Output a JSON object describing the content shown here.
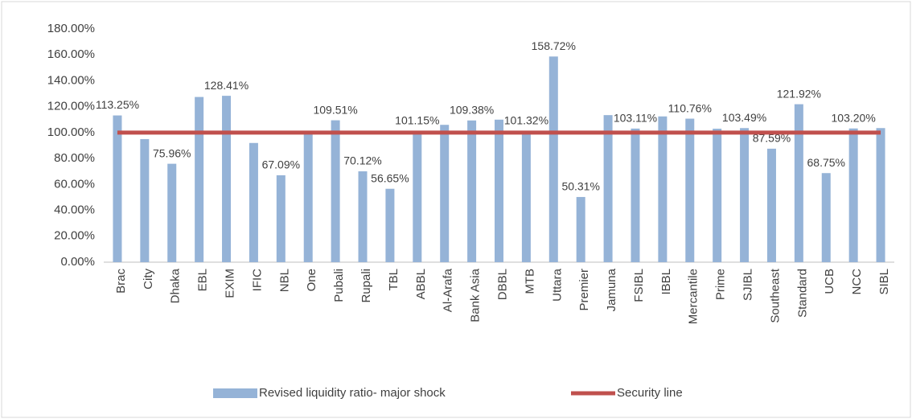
{
  "chart_data": {
    "type": "bar",
    "categories": [
      "Brac",
      "City",
      "Dhaka",
      "EBL",
      "EXIM",
      "IFIC",
      "NBL",
      "One",
      "Pubali",
      "Rupali",
      "TBL",
      "ABBL",
      "Al-Arafa",
      "Bank Asia",
      "DBBL",
      "MTB",
      "Uttara",
      "Premier",
      "Jamuna",
      "FSIBL",
      "IBBL",
      "Mercantile",
      "Prime",
      "SJIBL",
      "Southeast",
      "Standard",
      "UCB",
      "NCC",
      "SIBL"
    ],
    "series": [
      {
        "name": "Revised liquidity ratio- major shock",
        "type": "bar",
        "color": "#95b3d7",
        "values": [
          113.25,
          95,
          75.96,
          127.5,
          128.41,
          92,
          67.09,
          101,
          109.51,
          70.12,
          56.65,
          101.15,
          106,
          109.38,
          110,
          101.32,
          158.72,
          50.31,
          113.5,
          103.11,
          112.5,
          110.76,
          103,
          103.49,
          87.59,
          121.92,
          68.75,
          103.2,
          103.5
        ],
        "value_labels": [
          "113.25%",
          null,
          "75.96%",
          null,
          "128.41%",
          null,
          "67.09%",
          null,
          "109.51%",
          "70.12%",
          "56.65%",
          "101.15%",
          null,
          "109.38%",
          null,
          "101.32%",
          "158.72%",
          "50.31%",
          null,
          "103.11%",
          null,
          "110.76%",
          null,
          "103.49%",
          "87.59%",
          "121.92%",
          "68.75%",
          "103.20%",
          null
        ]
      },
      {
        "name": "Security line",
        "type": "line",
        "color": "#c0504d",
        "values": [
          100,
          100,
          100,
          100,
          100,
          100,
          100,
          100,
          100,
          100,
          100,
          100,
          100,
          100,
          100,
          100,
          100,
          100,
          100,
          100,
          100,
          100,
          100,
          100,
          100,
          100,
          100,
          100,
          100
        ]
      }
    ],
    "ylim": [
      0,
      180
    ],
    "yticks": [
      {
        "value": 0,
        "label": "0.00%"
      },
      {
        "value": 20,
        "label": "20.00%"
      },
      {
        "value": 40,
        "label": "40.00%"
      },
      {
        "value": 60,
        "label": "60.00%"
      },
      {
        "value": 80,
        "label": "80.00%"
      },
      {
        "value": 100,
        "label": "100.00%"
      },
      {
        "value": 120,
        "label": "120.00%"
      },
      {
        "value": 140,
        "label": "140.00%"
      },
      {
        "value": 160,
        "label": "160.00%"
      },
      {
        "value": 180,
        "label": "180.00%"
      }
    ],
    "grid": false,
    "legend": "bottom"
  }
}
